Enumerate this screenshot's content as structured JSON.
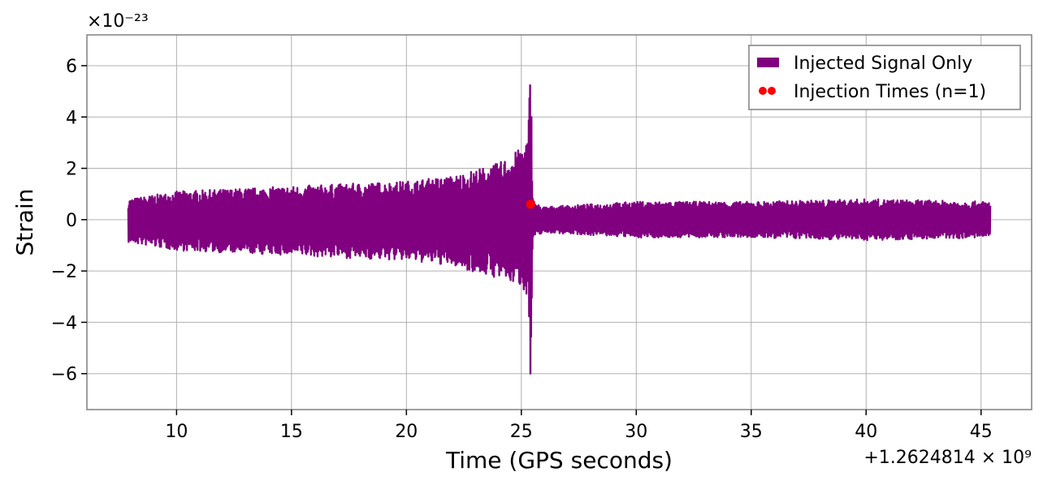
{
  "chart_data": {
    "type": "line",
    "title": "",
    "xlabel": "Time (GPS seconds)",
    "ylabel": "Strain",
    "x_offset_text": "+1.2624814 × 10⁹",
    "y_scale_text": "×10⁻²³",
    "xlim": [
      6.1,
      47.2
    ],
    "ylim": [
      -7.4,
      7.2
    ],
    "xticks": [
      10,
      15,
      20,
      25,
      30,
      35,
      40,
      45
    ],
    "xtick_labels": [
      "10",
      "15",
      "20",
      "25",
      "30",
      "35",
      "40",
      "45"
    ],
    "yticks": [
      -6,
      -4,
      -2,
      0,
      2,
      4,
      6
    ],
    "ytick_labels": [
      "−6",
      "−4",
      "−2",
      "0",
      "2",
      "4",
      "6"
    ],
    "grid": true,
    "legend_position": "top-right",
    "series": [
      {
        "name": "Injected Signal Only",
        "kind": "line",
        "color": "#800080",
        "envelope": {
          "x": [
            7.9,
            10,
            15,
            20,
            22,
            24,
            25,
            25.3,
            25.4,
            25.5,
            25.7,
            26,
            30,
            35,
            40,
            45.4
          ],
          "upper": [
            0.8,
            1.1,
            1.3,
            1.5,
            1.7,
            2.2,
            2.8,
            3.3,
            6.5,
            0.8,
            0.6,
            0.5,
            0.7,
            0.7,
            0.8,
            0.7
          ],
          "lower": [
            -0.9,
            -1.2,
            -1.4,
            -1.6,
            -1.8,
            -2.3,
            -2.6,
            -3.0,
            -6.7,
            -0.8,
            -0.6,
            -0.5,
            -0.7,
            -0.7,
            -0.8,
            -0.7
          ]
        }
      },
      {
        "name": "Injection Times (n=1)",
        "kind": "scatter",
        "color": "#ff0000",
        "points": [
          {
            "x": 25.4,
            "y": 0.6
          }
        ]
      }
    ]
  }
}
